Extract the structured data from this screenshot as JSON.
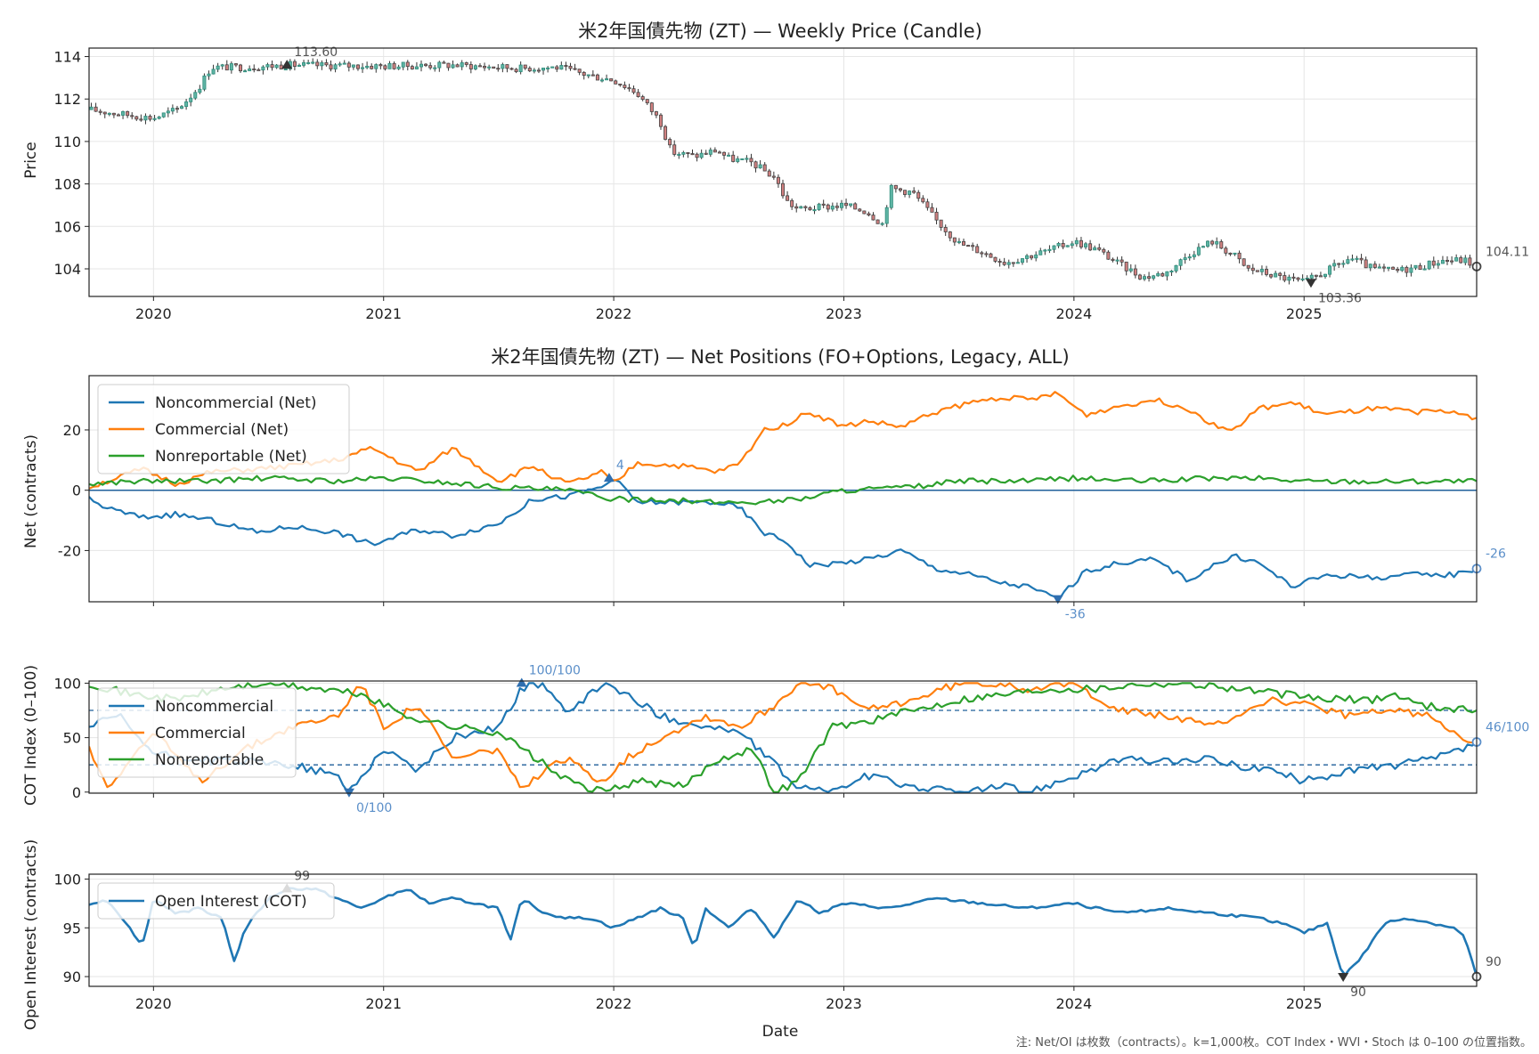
{
  "footnote": "注: Net/OI は枚数（contracts）。k=1,000枚。COT Index・WVI・Stoch は 0–100 の位置指数。",
  "chart_data": [
    {
      "type": "candlestick",
      "title": "米2年国債先物 (ZT) — Weekly Price (Candle)",
      "xlabel": "",
      "ylabel": "Price",
      "x_ticks": [
        "2020",
        "2021",
        "2022",
        "2023",
        "2024",
        "2025"
      ],
      "y_ticks": [
        "104",
        "106",
        "108",
        "110",
        "112",
        "114"
      ],
      "xlim": [
        2019.72,
        2025.75
      ],
      "ylim": [
        102.7,
        114.4
      ],
      "series": [
        {
          "name": "Close",
          "x": [
            2019.72,
            2019.85,
            2020.0,
            2020.1,
            2020.15,
            2020.2,
            2020.25,
            2020.4,
            2020.6,
            2021.0,
            2021.3,
            2021.5,
            2021.6,
            2021.75,
            2021.9,
            2022.0,
            2022.1,
            2022.2,
            2022.25,
            2022.35,
            2022.45,
            2022.5,
            2022.6,
            2022.7,
            2022.75,
            2022.8,
            2022.9,
            2023.0,
            2023.1,
            2023.17,
            2023.2,
            2023.3,
            2023.4,
            2023.5,
            2023.6,
            2023.7,
            2023.8,
            2023.9,
            2024.0,
            2024.1,
            2024.2,
            2024.3,
            2024.4,
            2024.5,
            2024.6,
            2024.7,
            2024.75,
            2024.8,
            2024.9,
            2025.0,
            2025.1,
            2025.2,
            2025.3,
            2025.4,
            2025.5,
            2025.6,
            2025.7,
            2025.75
          ],
          "y": [
            111.5,
            111.3,
            111.1,
            111.5,
            112.0,
            112.6,
            113.5,
            113.5,
            113.6,
            113.55,
            113.6,
            113.5,
            113.45,
            113.5,
            113.1,
            112.9,
            112.3,
            111.0,
            109.5,
            109.3,
            109.6,
            109.2,
            109.0,
            108.3,
            107.2,
            106.8,
            106.9,
            107.0,
            106.7,
            106.1,
            107.8,
            107.6,
            106.3,
            105.2,
            104.8,
            104.3,
            104.6,
            104.9,
            105.3,
            104.9,
            104.2,
            103.6,
            103.8,
            104.7,
            105.3,
            104.6,
            104.0,
            103.9,
            103.6,
            103.36,
            103.9,
            104.5,
            104.0,
            103.9,
            104.1,
            104.4,
            104.4,
            104.11
          ]
        }
      ],
      "annotations": [
        {
          "label": "113.60",
          "x": 2020.58,
          "y": 113.6,
          "marker": "max"
        },
        {
          "label": "103.36",
          "x": 2025.03,
          "y": 103.36,
          "marker": "min"
        },
        {
          "label": "104.11",
          "x": 2025.75,
          "y": 104.11,
          "marker": "last"
        }
      ]
    },
    {
      "type": "line",
      "title": "米2年国債先物 (ZT) — Net Positions (FO+Options, Legacy, ALL)",
      "xlabel": "",
      "ylabel": "Net (contracts)",
      "y_ticks": [
        "-20",
        "0",
        "20"
      ],
      "xlim": [
        2019.72,
        2025.75
      ],
      "ylim": [
        -37,
        38
      ],
      "legend": [
        "Noncommercial (Net)",
        "Commercial (Net)",
        "Nonreportable (Net)"
      ],
      "series": [
        {
          "name": "Noncommercial (Net)",
          "color": "#1f77b4",
          "x": [
            2019.72,
            2019.8,
            2019.95,
            2020.1,
            2020.25,
            2020.45,
            2020.6,
            2020.8,
            2020.95,
            2021.15,
            2021.3,
            2021.5,
            2021.65,
            2021.8,
            2021.95,
            2022.0,
            2022.1,
            2022.3,
            2022.45,
            2022.55,
            2022.65,
            2022.75,
            2022.85,
            2023.0,
            2023.1,
            2023.25,
            2023.4,
            2023.55,
            2023.7,
            2023.8,
            2023.93,
            2024.05,
            2024.2,
            2024.35,
            2024.5,
            2024.6,
            2024.7,
            2024.8,
            2024.95,
            2025.1,
            2025.3,
            2025.5,
            2025.65,
            2025.75
          ],
          "y": [
            -3,
            -6,
            -9,
            -8,
            -10,
            -14,
            -12,
            -14,
            -18,
            -13,
            -15,
            -11,
            -3,
            -2,
            1,
            4,
            -4,
            -4,
            -4,
            -6,
            -14,
            -17,
            -25,
            -24,
            -23,
            -20,
            -26,
            -28,
            -31,
            -32,
            -36,
            -27,
            -24,
            -23,
            -30,
            -25,
            -22,
            -24,
            -32,
            -28,
            -29,
            -28,
            -28,
            -26
          ]
        },
        {
          "name": "Commercial (Net)",
          "color": "#ff7f0e",
          "x": [
            2019.72,
            2019.8,
            2019.95,
            2020.1,
            2020.25,
            2020.45,
            2020.6,
            2020.8,
            2020.95,
            2021.15,
            2021.3,
            2021.5,
            2021.65,
            2021.8,
            2021.95,
            2022.0,
            2022.1,
            2022.3,
            2022.45,
            2022.55,
            2022.65,
            2022.75,
            2022.85,
            2023.0,
            2023.1,
            2023.25,
            2023.4,
            2023.55,
            2023.7,
            2023.8,
            2023.93,
            2024.05,
            2024.2,
            2024.35,
            2024.5,
            2024.6,
            2024.7,
            2024.8,
            2024.95,
            2025.1,
            2025.3,
            2025.5,
            2025.65,
            2025.75
          ],
          "y": [
            1,
            3,
            7,
            2,
            6,
            7,
            8,
            10,
            14,
            6,
            14,
            3,
            8,
            2,
            6,
            2,
            9,
            8,
            6,
            9,
            20,
            22,
            26,
            21,
            23,
            21,
            26,
            29,
            31,
            30,
            32,
            25,
            28,
            30,
            27,
            22,
            20,
            27,
            29,
            25,
            27,
            26,
            26,
            24
          ]
        },
        {
          "name": "Nonreportable (Net)",
          "color": "#2ca02c",
          "x": [
            2019.72,
            2019.9,
            2020.2,
            2020.5,
            2020.8,
            2021.0,
            2021.2,
            2021.5,
            2021.8,
            2022.0,
            2022.2,
            2022.4,
            2022.6,
            2022.8,
            2023.0,
            2023.3,
            2023.5,
            2023.8,
            2024.0,
            2024.3,
            2024.6,
            2024.8,
            2025.0,
            2025.2,
            2025.4,
            2025.6,
            2025.75
          ],
          "y": [
            2,
            3,
            3,
            4,
            3,
            4,
            3,
            1,
            0,
            -3,
            -3,
            -4,
            -4,
            -3,
            0,
            1,
            3,
            3,
            4,
            3,
            4,
            4,
            3,
            3,
            3,
            3,
            3
          ]
        }
      ],
      "annotations": [
        {
          "label": "4",
          "x": 2021.98,
          "y": 4,
          "marker": "max"
        },
        {
          "label": "-36",
          "x": 2023.93,
          "y": -36,
          "marker": "min"
        },
        {
          "label": "-26",
          "x": 2025.75,
          "y": -26,
          "marker": "last"
        }
      ]
    },
    {
      "type": "line",
      "title": "",
      "xlabel": "",
      "ylabel": "COT Index (0–100)",
      "y_ticks": [
        "0",
        "50",
        "100"
      ],
      "xlim": [
        2019.72,
        2025.75
      ],
      "ylim": [
        -1,
        102
      ],
      "reference_lines": [
        25,
        75
      ],
      "legend": [
        "Noncommercial",
        "Commercial",
        "Nonreportable"
      ],
      "series": [
        {
          "name": "Noncommercial",
          "color": "#1f77b4",
          "x": [
            2019.72,
            2019.85,
            2020.0,
            2020.2,
            2020.4,
            2020.6,
            2020.8,
            2020.85,
            2021.0,
            2021.15,
            2021.3,
            2021.5,
            2021.6,
            2021.7,
            2021.8,
            2021.95,
            2022.05,
            2022.2,
            2022.4,
            2022.55,
            2022.7,
            2022.8,
            2022.95,
            2023.1,
            2023.3,
            2023.5,
            2023.7,
            2023.8,
            2024.0,
            2024.2,
            2024.4,
            2024.6,
            2024.7,
            2024.85,
            2025.0,
            2025.2,
            2025.4,
            2025.55,
            2025.7,
            2025.75
          ],
          "y": [
            60,
            70,
            35,
            30,
            28,
            25,
            15,
            0,
            40,
            20,
            50,
            60,
            95,
            100,
            70,
            100,
            90,
            70,
            60,
            55,
            25,
            5,
            0,
            15,
            5,
            0,
            5,
            0,
            15,
            30,
            28,
            30,
            25,
            20,
            10,
            20,
            25,
            30,
            40,
            46
          ]
        },
        {
          "name": "Commercial",
          "color": "#ff7f0e",
          "x": [
            2019.72,
            2019.8,
            2020.0,
            2020.2,
            2020.4,
            2020.6,
            2020.8,
            2020.9,
            2021.0,
            2021.15,
            2021.3,
            2021.5,
            2021.6,
            2021.7,
            2021.8,
            2021.95,
            2022.05,
            2022.2,
            2022.4,
            2022.55,
            2022.7,
            2022.8,
            2022.95,
            2023.1,
            2023.3,
            2023.5,
            2023.7,
            2023.8,
            2024.0,
            2024.2,
            2024.4,
            2024.6,
            2024.7,
            2024.85,
            2025.0,
            2025.2,
            2025.4,
            2025.55,
            2025.7,
            2025.75
          ],
          "y": [
            40,
            5,
            55,
            10,
            40,
            60,
            70,
            100,
            60,
            80,
            30,
            40,
            0,
            20,
            30,
            10,
            30,
            50,
            70,
            60,
            80,
            100,
            95,
            75,
            85,
            100,
            100,
            95,
            100,
            75,
            70,
            60,
            70,
            85,
            80,
            70,
            75,
            70,
            50,
            45
          ]
        },
        {
          "name": "Nonreportable",
          "color": "#2ca02c",
          "x": [
            2019.72,
            2019.9,
            2020.1,
            2020.3,
            2020.5,
            2020.7,
            2020.9,
            2021.1,
            2021.3,
            2021.5,
            2021.6,
            2021.8,
            2021.95,
            2022.1,
            2022.3,
            2022.45,
            2022.6,
            2022.7,
            2022.8,
            2022.95,
            2023.1,
            2023.3,
            2023.5,
            2023.7,
            2023.9,
            2024.1,
            2024.3,
            2024.5,
            2024.7,
            2024.9,
            2025.1,
            2025.3,
            2025.4,
            2025.5,
            2025.6,
            2025.75
          ],
          "y": [
            100,
            90,
            85,
            95,
            100,
            95,
            90,
            70,
            60,
            55,
            40,
            10,
            0,
            10,
            5,
            30,
            40,
            0,
            10,
            60,
            65,
            75,
            85,
            90,
            95,
            95,
            100,
            100,
            95,
            90,
            85,
            85,
            90,
            80,
            78,
            75
          ]
        }
      ],
      "annotations": [
        {
          "label": "100/100",
          "x": 2021.6,
          "y": 100,
          "marker": "max"
        },
        {
          "label": "0/100",
          "x": 2020.85,
          "y": 0,
          "marker": "min"
        },
        {
          "label": "46/100",
          "x": 2025.75,
          "y": 46,
          "marker": "last"
        }
      ]
    },
    {
      "type": "line",
      "title": "",
      "xlabel": "Date",
      "ylabel": "Open Interest (contracts)",
      "x_ticks": [
        "2020",
        "2021",
        "2022",
        "2023",
        "2024",
        "2025"
      ],
      "y_ticks": [
        "90",
        "95",
        "100"
      ],
      "xlim": [
        2019.72,
        2025.75
      ],
      "ylim": [
        89,
        100.5
      ],
      "legend": [
        "Open Interest (COT)"
      ],
      "series": [
        {
          "name": "Open Interest (COT)",
          "color": "#1f77b4",
          "x": [
            2019.72,
            2019.8,
            2019.9,
            2019.95,
            2020.0,
            2020.1,
            2020.2,
            2020.3,
            2020.35,
            2020.4,
            2020.5,
            2020.58,
            2020.7,
            2020.8,
            2020.9,
            2021.0,
            2021.1,
            2021.2,
            2021.3,
            2021.4,
            2021.5,
            2021.55,
            2021.6,
            2021.7,
            2021.8,
            2021.9,
            2022.0,
            2022.1,
            2022.2,
            2022.3,
            2022.35,
            2022.4,
            2022.5,
            2022.6,
            2022.7,
            2022.8,
            2022.9,
            2023.0,
            2023.2,
            2023.4,
            2023.6,
            2023.8,
            2024.0,
            2024.2,
            2024.4,
            2024.6,
            2024.8,
            2024.9,
            2025.0,
            2025.1,
            2025.17,
            2025.25,
            2025.35,
            2025.45,
            2025.55,
            2025.65,
            2025.7,
            2025.75
          ],
          "y": [
            97.5,
            97.8,
            95.0,
            93.0,
            98.0,
            96.5,
            97.0,
            96.0,
            91.5,
            95.0,
            98.0,
            99.0,
            99.0,
            98.0,
            97.0,
            98.0,
            99.0,
            97.5,
            98.0,
            97.5,
            97.0,
            93.5,
            98.0,
            96.5,
            96.0,
            96.0,
            95.0,
            96.0,
            97.0,
            96.0,
            93.0,
            97.0,
            95.0,
            97.0,
            94.0,
            98.0,
            96.5,
            97.5,
            97.0,
            98.0,
            97.5,
            97.0,
            97.5,
            96.5,
            97.0,
            96.5,
            96.0,
            95.5,
            94.5,
            95.5,
            90.0,
            92.0,
            95.5,
            96.0,
            95.5,
            95.0,
            94.0,
            90.0
          ]
        }
      ],
      "annotations": [
        {
          "label": "99",
          "x": 2020.58,
          "y": 99,
          "marker": "max"
        },
        {
          "label": "90",
          "x": 2025.17,
          "y": 90,
          "marker": "min"
        },
        {
          "label": "90",
          "x": 2025.75,
          "y": 90,
          "marker": "last"
        }
      ]
    }
  ]
}
